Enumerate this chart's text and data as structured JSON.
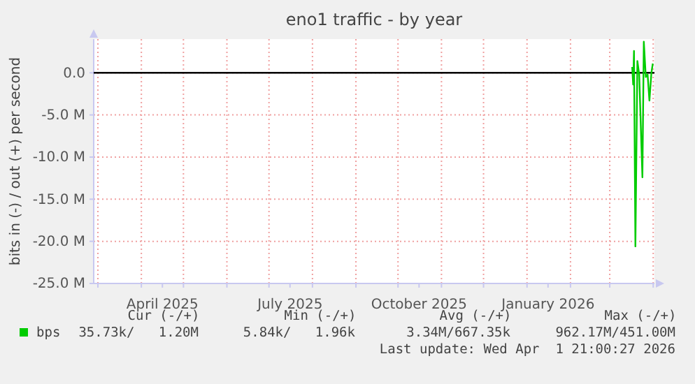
{
  "chart_data": {
    "type": "line",
    "title": "eno1 traffic - by year",
    "ylabel": "bits in (-) / out (+) per second",
    "x": [
      "2026-03-17T00:00",
      "2026-03-17T17:00",
      "2026-03-18T07:00",
      "2026-03-19T07:00",
      "2026-03-20T17:00",
      "2026-03-22T00:00",
      "2026-03-24T07:00",
      "2026-03-25T07:00",
      "2026-03-26T17:00",
      "2026-03-28T00:00",
      "2026-03-29T07:00",
      "2026-03-30T17:00",
      "2026-03-31T17:00"
    ],
    "series": [
      {
        "name": "bps",
        "color": "#00cc00",
        "values": [
          700000,
          -1400000,
          2600000,
          -20600000,
          1400000,
          -200000,
          -12400000,
          3700000,
          -500000,
          -200000,
          -3300000,
          0,
          1100000
        ]
      }
    ],
    "xlim": [
      "2025-02-26T00:00",
      "2026-04-01T21:00"
    ],
    "xticks": [
      {
        "value": "2025-03-01",
        "label": null
      },
      {
        "value": "2025-04-01",
        "label": null
      },
      {
        "value": "2025-05-01",
        "label": null
      },
      {
        "value": "2025-06-01",
        "label": null
      },
      {
        "value": "2025-07-01",
        "label": null
      },
      {
        "value": "2025-08-01",
        "label": null
      },
      {
        "value": "2025-09-01",
        "label": null
      },
      {
        "value": "2025-10-01",
        "label": null
      },
      {
        "value": "2025-11-01",
        "label": null
      },
      {
        "value": "2025-12-01",
        "label": null
      },
      {
        "value": "2026-01-01",
        "label": null
      },
      {
        "value": "2026-02-01",
        "label": null
      },
      {
        "value": "2026-03-01",
        "label": null
      },
      {
        "value": "2026-04-01",
        "label": null
      },
      {
        "value": "2025-04-16",
        "label": "April 2025"
      },
      {
        "value": "2025-07-16",
        "label": "July 2025"
      },
      {
        "value": "2025-10-16",
        "label": "October 2025"
      },
      {
        "value": "2026-01-16",
        "label": "January 2026"
      }
    ],
    "ylim": [
      -25000000,
      4000000
    ],
    "yticks": [
      {
        "value": 0,
        "label": "0.0"
      },
      {
        "value": -5000000,
        "label": "-5.0 M"
      },
      {
        "value": -10000000,
        "label": "-10.0 M"
      },
      {
        "value": -15000000,
        "label": "-15.0 M"
      },
      {
        "value": -20000000,
        "label": "-20.0 M"
      },
      {
        "value": -25000000,
        "label": "-25.0 M"
      }
    ],
    "grid": true,
    "ref_lines": [
      {
        "axis": "y",
        "value": 0,
        "color": "#000000"
      }
    ],
    "legend": "bottom",
    "annotations": [
      "Cur (-/+)",
      "Min (-/+)",
      "Avg (-/+)",
      "Max (-/+)",
      "35.73k/   1.20M",
      "5.84k/   1.96k",
      "3.34M/667.35k",
      "962.17M/451.00M",
      "Last update: Wed Apr  1 21:00:27 2026"
    ]
  }
}
